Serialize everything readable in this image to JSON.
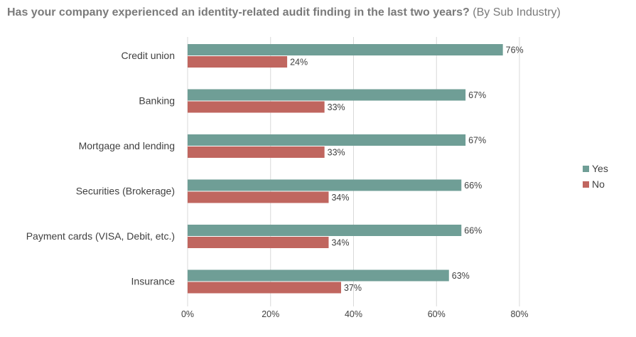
{
  "title": {
    "main": "Has your company experienced an identity-related audit finding in the last two years?",
    "subtitle": "(By Sub Industry)"
  },
  "legend": {
    "items": [
      {
        "label": "Yes",
        "color": "#6f9e96"
      },
      {
        "label": "No",
        "color": "#c0665f"
      }
    ]
  },
  "chart_data": {
    "type": "bar",
    "orientation": "horizontal",
    "categories": [
      "Credit union",
      "Banking",
      "Mortgage and lending",
      "Securities (Brokerage)",
      "Payment cards (VISA, Debit, etc.)",
      "Insurance"
    ],
    "series": [
      {
        "name": "Yes",
        "color": "#6f9e96",
        "values": [
          76,
          67,
          67,
          66,
          66,
          63
        ],
        "labels": [
          "76%",
          "67%",
          "67%",
          "66%",
          "66%",
          "63%"
        ]
      },
      {
        "name": "No",
        "color": "#c0665f",
        "values": [
          24,
          33,
          33,
          34,
          34,
          37
        ],
        "labels": [
          "24%",
          "33%",
          "33%",
          "34%",
          "34%",
          "37%"
        ]
      }
    ],
    "xlim": [
      0,
      80
    ],
    "xticks": [
      "0%",
      "20%",
      "40%",
      "60%",
      "80%"
    ],
    "grid": true,
    "legend_position": "right"
  }
}
